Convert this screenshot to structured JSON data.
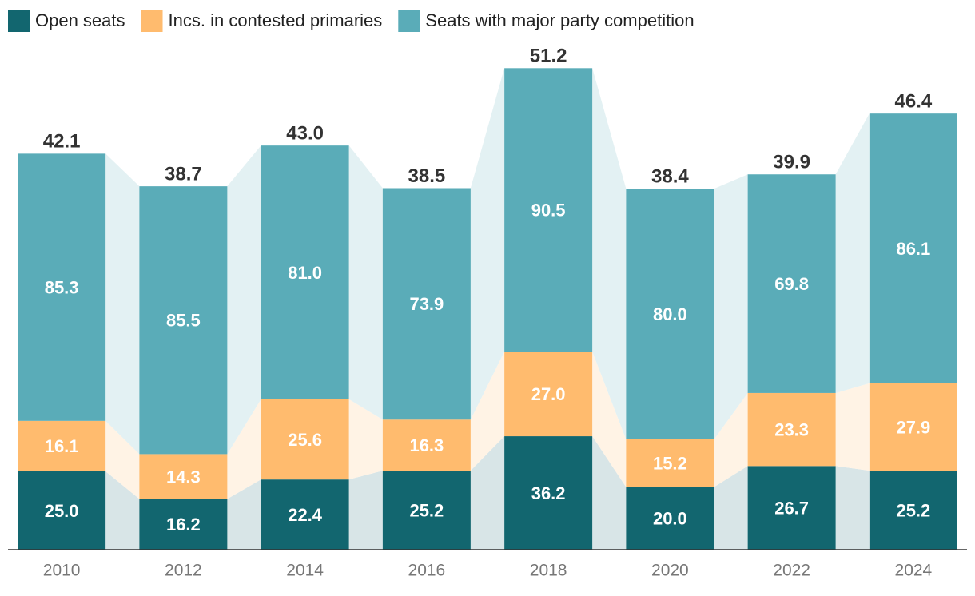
{
  "chart_data": {
    "type": "stacked-bar",
    "categories": [
      "2010",
      "2012",
      "2014",
      "2016",
      "2018",
      "2020",
      "2022",
      "2024"
    ],
    "series": [
      {
        "name": "Open seats",
        "color": "#12666f",
        "band_color": "#d8e5e7",
        "values": [
          25.0,
          16.2,
          22.4,
          25.2,
          36.2,
          20.0,
          26.7,
          25.2
        ],
        "value_labels": [
          "25.0",
          "16.2",
          "22.4",
          "25.2",
          "36.2",
          "20.0",
          "26.7",
          "25.2"
        ]
      },
      {
        "name": "Incs. in contested primaries",
        "color": "#ffbb6e",
        "band_color": "#fff3e5",
        "values": [
          16.1,
          14.3,
          25.6,
          16.3,
          27.0,
          15.2,
          23.3,
          27.9
        ],
        "value_labels": [
          "16.1",
          "14.3",
          "25.6",
          "16.3",
          "27.0",
          "15.2",
          "23.3",
          "27.9"
        ]
      },
      {
        "name": "Seats with major party competition",
        "color": "#5aacb8",
        "band_color": "#e3f1f3",
        "values": [
          85.3,
          85.5,
          81.0,
          73.9,
          90.5,
          80.0,
          69.8,
          86.1
        ],
        "value_labels": [
          "85.3",
          "85.5",
          "81.0",
          "73.9",
          "90.5",
          "80.0",
          "69.8",
          "86.1"
        ]
      }
    ],
    "totals": {
      "values": [
        42.1,
        38.7,
        43.0,
        38.5,
        51.2,
        38.4,
        39.9,
        46.4
      ],
      "value_labels": [
        "42.1",
        "38.7",
        "43.0",
        "38.5",
        "51.2",
        "38.4",
        "39.9",
        "46.4"
      ]
    },
    "ylim": [
      0,
      165
    ]
  }
}
